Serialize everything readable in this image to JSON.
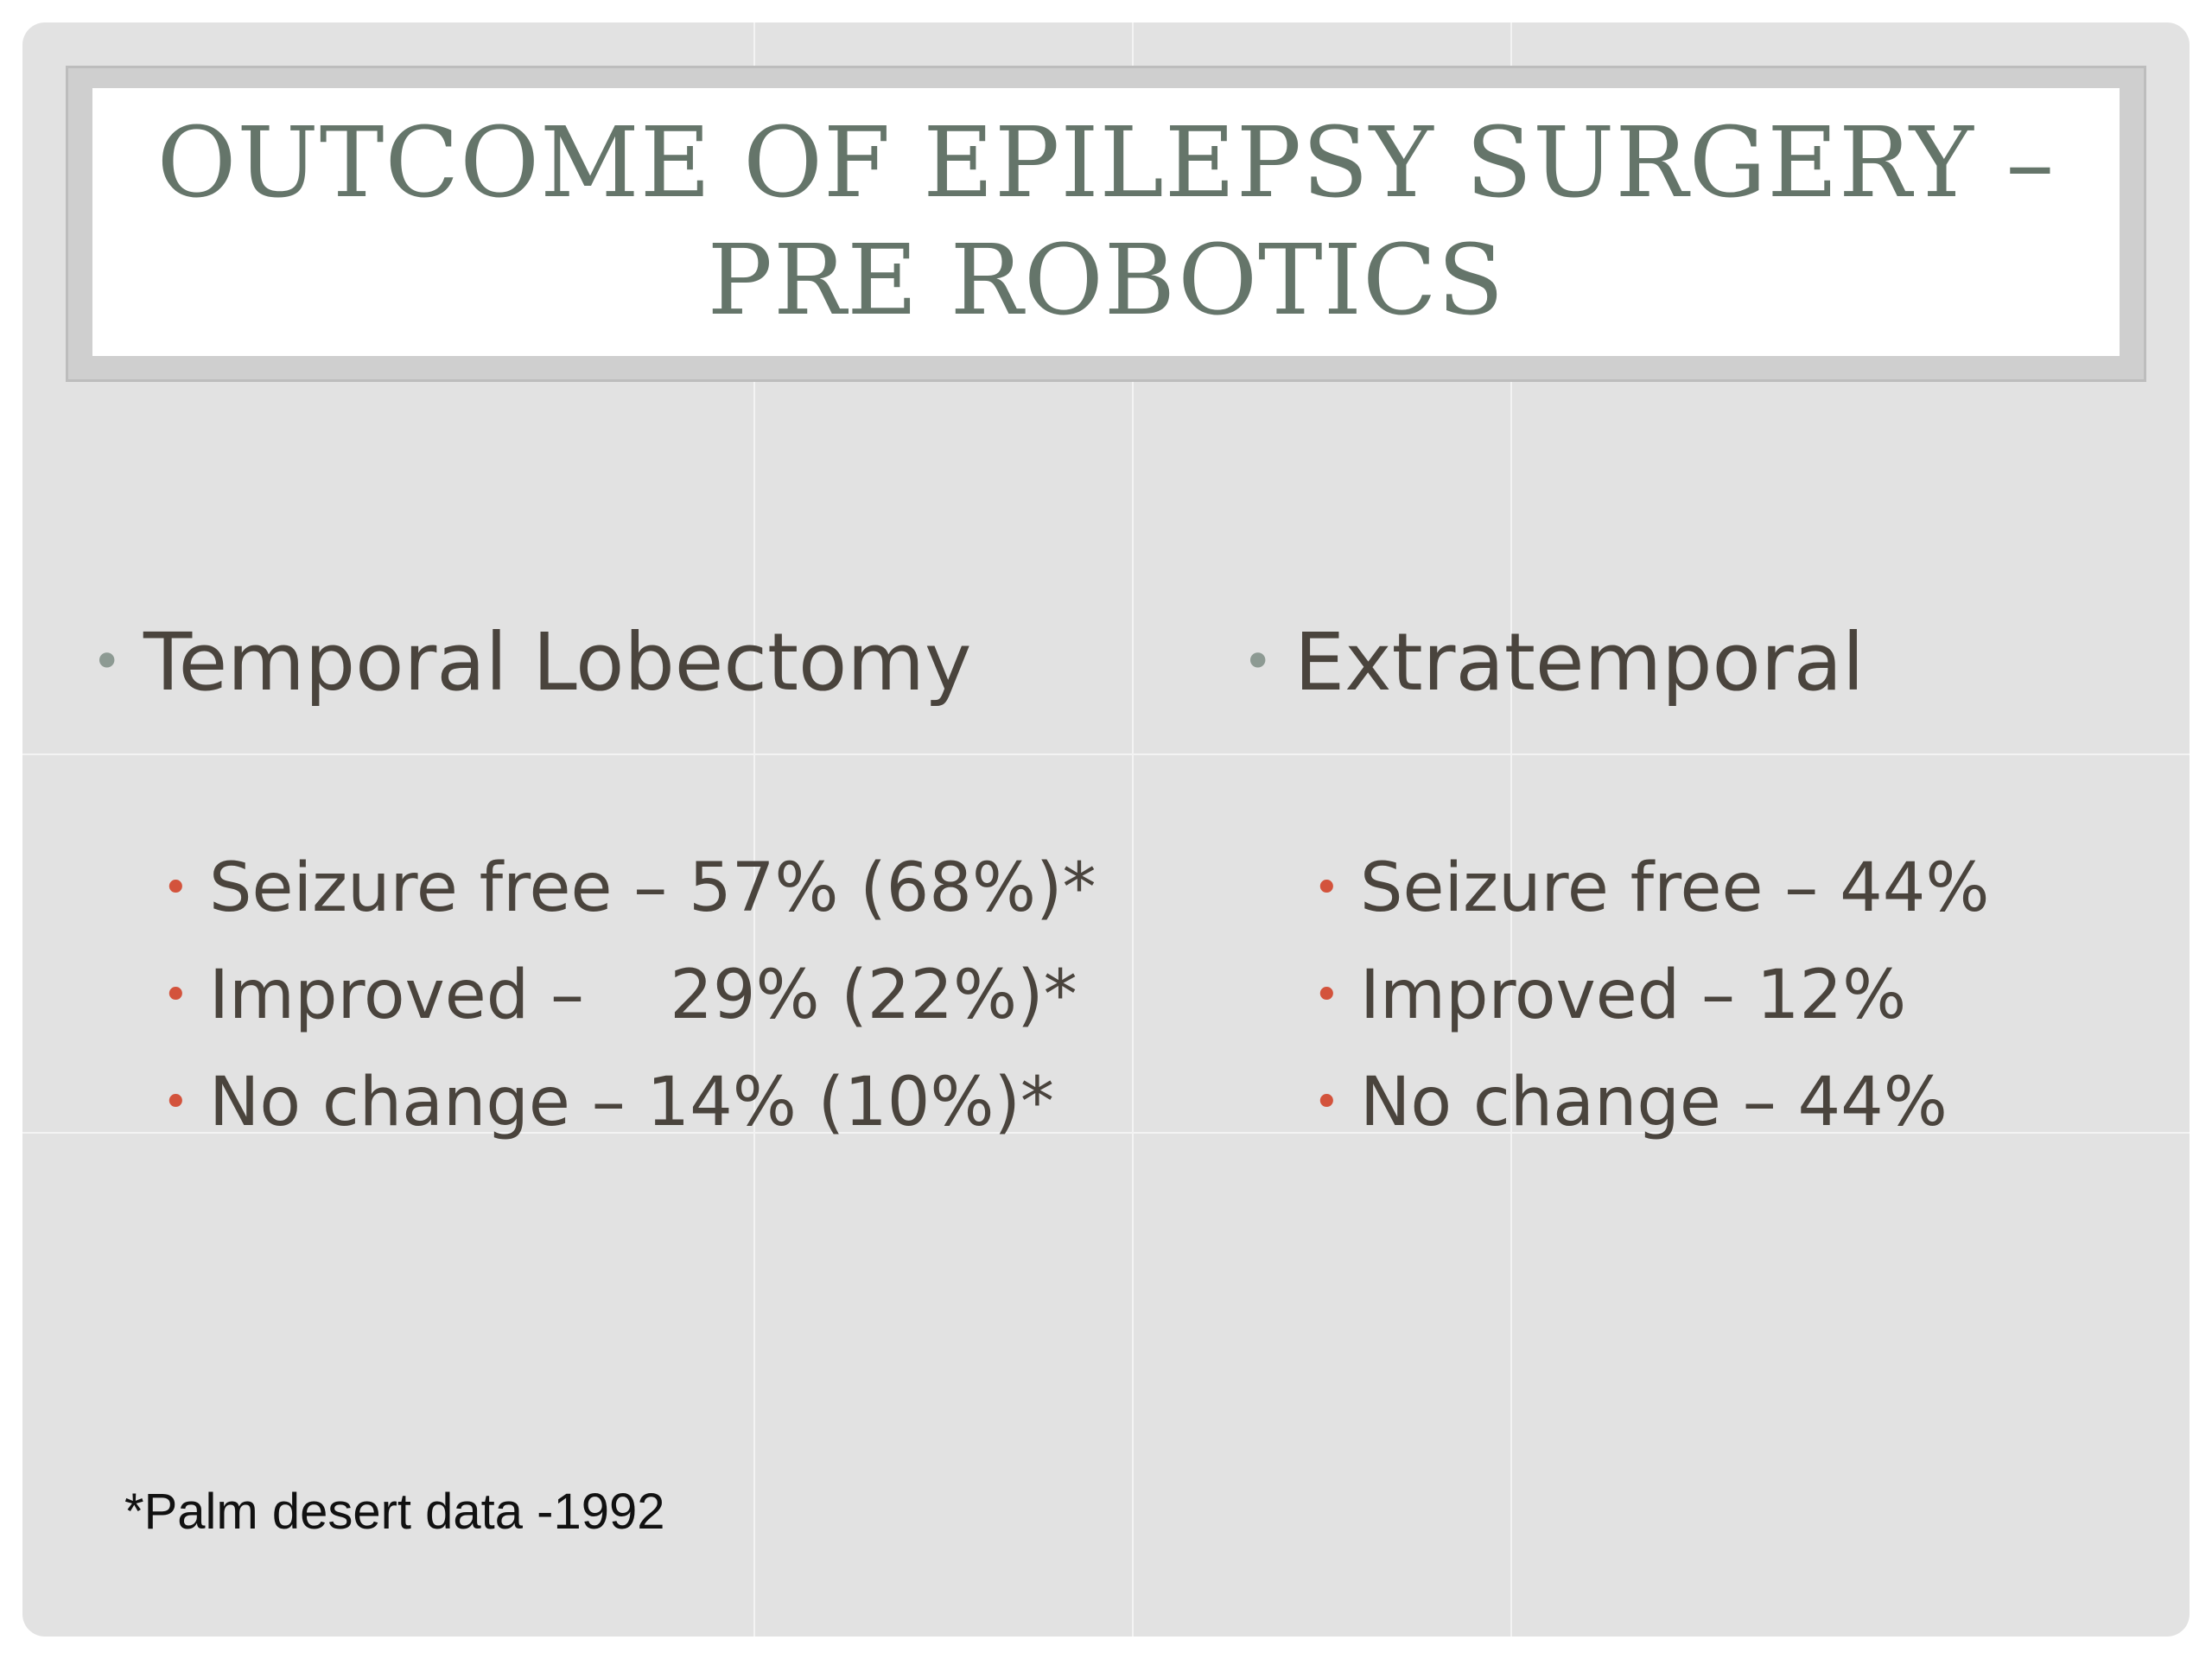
{
  "title": {
    "line1": "OUTCOME OF EPILEPSY SURGERY –",
    "line2": "PRE ROBOTICS"
  },
  "left_column": {
    "heading": "Temporal Lobectomy",
    "items": [
      "Seizure free – 57% (68%)*",
      "Improved –    29% (22%)*",
      "No change – 14% (10%)*"
    ]
  },
  "right_column": {
    "heading": "Extratemporal",
    "items": [
      "Seizure free – 44%",
      "Improved – 12%",
      "No change – 44%"
    ]
  },
  "footnote": "*Palm desert data -1992",
  "colors": {
    "title": "#65756a",
    "heading_bullet": "#8d9a93",
    "sub_bullet": "#d3533c",
    "text": "#4a443d",
    "background": "#e2e2e2"
  }
}
